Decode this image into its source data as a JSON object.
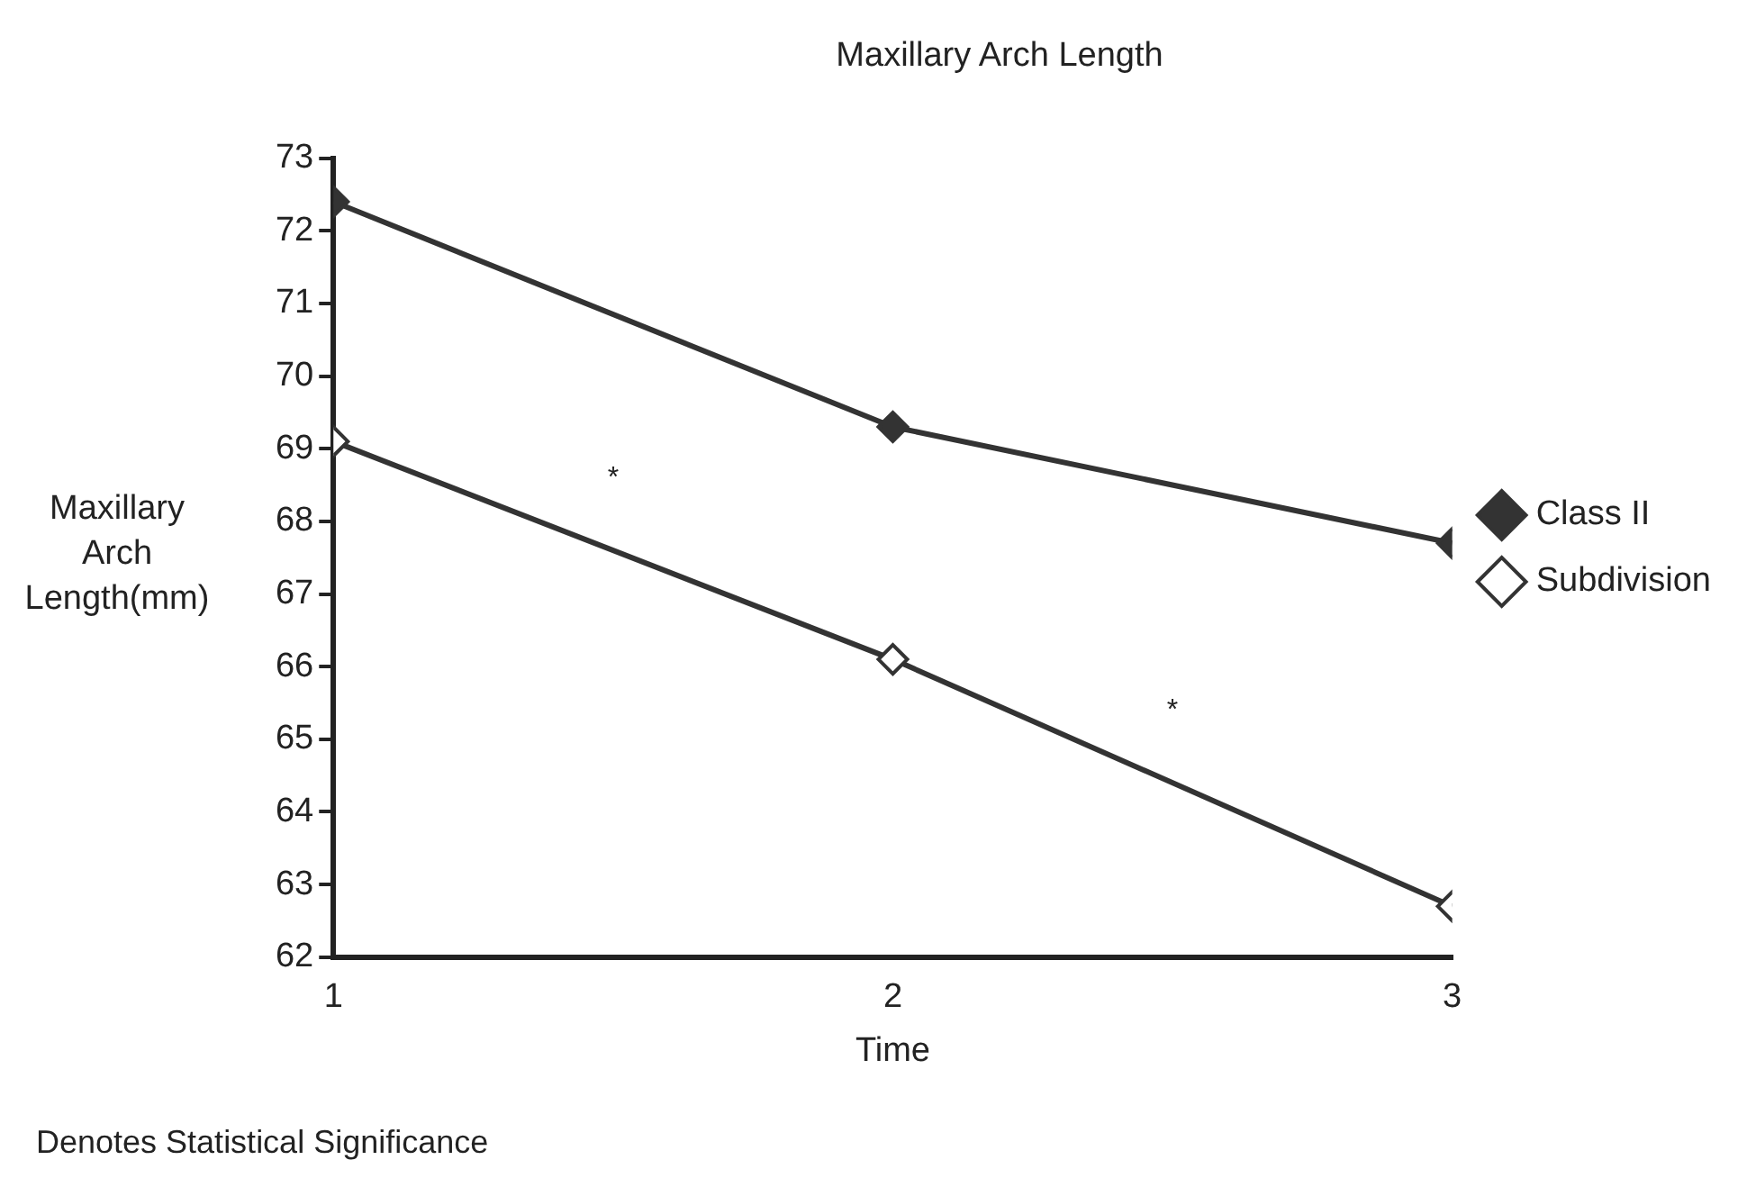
{
  "chart_data": {
    "type": "line",
    "title": "Maxillary Arch Length",
    "xlabel": "Time",
    "ylabel": "Maxillary Arch Length(mm)",
    "x": [
      1,
      2,
      3
    ],
    "xlim": [
      1,
      3
    ],
    "xticks": [
      1,
      2,
      3
    ],
    "ylim": [
      62,
      73
    ],
    "yticks": [
      62,
      63,
      64,
      65,
      66,
      67,
      68,
      69,
      70,
      71,
      72,
      73
    ],
    "series": [
      {
        "name": "Class II",
        "color": "#333333",
        "values": [
          72.4,
          69.3,
          67.7
        ]
      },
      {
        "name": "Subdivision",
        "color": "#333333",
        "values": [
          69.1,
          66.1,
          62.7
        ]
      }
    ],
    "marker": "diamond",
    "grid": false,
    "legend": "right",
    "annotations": [
      "*",
      "*",
      "Denotes Statistical Significance"
    ]
  }
}
